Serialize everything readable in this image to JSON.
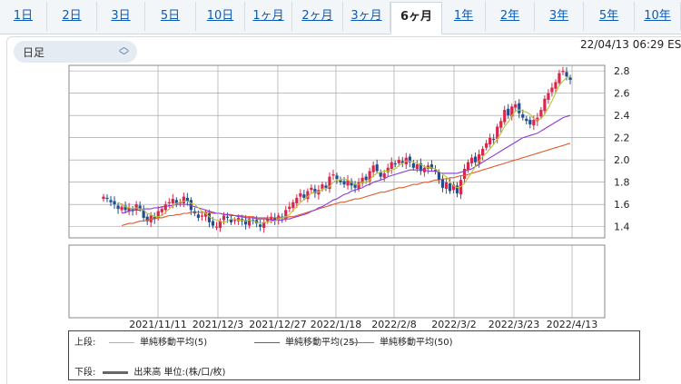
{
  "tabs": [
    {
      "label": "1日"
    },
    {
      "label": "2日"
    },
    {
      "label": "3日"
    },
    {
      "label": "5日"
    },
    {
      "label": "10日"
    },
    {
      "label": "1ヶ月"
    },
    {
      "label": "2ヶ月"
    },
    {
      "label": "3ヶ月"
    },
    {
      "label": "6ヶ月",
      "active": true
    },
    {
      "label": "1年"
    },
    {
      "label": "2年"
    },
    {
      "label": "3年"
    },
    {
      "label": "5年"
    },
    {
      "label": "10年"
    }
  ],
  "period_select": {
    "label": "日足"
  },
  "timestamp": "22/04/13 06:29 ES",
  "legend": {
    "upper_label": "上段:",
    "lower_label": "下段:",
    "ma5": "単純移動平均(5)",
    "ma25": "単純移動平均(25)",
    "ma50": "単純移動平均(50)",
    "volume": "出来高 単位:(株/口/枚)"
  },
  "colors": {
    "up": "#d9264a",
    "down": "#1f4f8f",
    "ma5": "#b8c43a",
    "ma25": "#8a3ad6",
    "ma50": "#e0592b",
    "grid": "#999999"
  },
  "chart_data": {
    "type": "candlestick",
    "x_ticks": [
      "2021/11/11",
      "2021/12/3",
      "2021/12/27",
      "2022/1/18",
      "2022/2/8",
      "2022/3/2",
      "2022/3/23",
      "2022/4/13"
    ],
    "y_ticks": [
      1.4,
      1.6,
      1.8,
      2.0,
      2.2,
      2.4,
      2.6,
      2.8
    ],
    "ylim": [
      1.3,
      2.85
    ],
    "close": [
      1.67,
      1.65,
      1.62,
      1.6,
      1.56,
      1.58,
      1.55,
      1.57,
      1.54,
      1.6,
      1.56,
      1.48,
      1.45,
      1.5,
      1.47,
      1.54,
      1.56,
      1.6,
      1.62,
      1.65,
      1.6,
      1.62,
      1.67,
      1.63,
      1.55,
      1.52,
      1.48,
      1.5,
      1.53,
      1.44,
      1.41,
      1.4,
      1.45,
      1.5,
      1.48,
      1.44,
      1.46,
      1.48,
      1.45,
      1.42,
      1.47,
      1.45,
      1.43,
      1.4,
      1.44,
      1.47,
      1.49,
      1.45,
      1.5,
      1.48,
      1.55,
      1.58,
      1.62,
      1.66,
      1.7,
      1.66,
      1.72,
      1.75,
      1.7,
      1.73,
      1.78,
      1.75,
      1.85,
      1.87,
      1.83,
      1.8,
      1.78,
      1.82,
      1.77,
      1.75,
      1.8,
      1.84,
      1.82,
      1.9,
      1.95,
      1.9,
      1.85,
      1.88,
      1.93,
      1.98,
      1.96,
      2.0,
      1.97,
      2.02,
      1.98,
      1.93,
      1.96,
      1.9,
      1.93,
      1.95,
      1.92,
      1.9,
      1.82,
      1.75,
      1.8,
      1.72,
      1.78,
      1.7,
      1.82,
      1.92,
      1.98,
      2.02,
      1.98,
      2.05,
      2.1,
      2.15,
      2.2,
      2.18,
      2.3,
      2.35,
      2.45,
      2.4,
      2.48,
      2.5,
      2.42,
      2.38,
      2.35,
      2.32,
      2.36,
      2.38,
      2.45,
      2.55,
      2.6,
      2.65,
      2.7,
      2.78,
      2.8,
      2.75,
      2.72
    ],
    "ma5": [
      null,
      null,
      null,
      null,
      1.62,
      1.6,
      1.58,
      1.57,
      1.56,
      1.57,
      1.56,
      1.55,
      1.52,
      1.51,
      1.49,
      1.49,
      1.5,
      1.53,
      1.56,
      1.59,
      1.61,
      1.62,
      1.63,
      1.63,
      1.61,
      1.6,
      1.57,
      1.54,
      1.52,
      1.49,
      1.47,
      1.46,
      1.45,
      1.44,
      1.45,
      1.47,
      1.47,
      1.46,
      1.46,
      1.45,
      1.46,
      1.45,
      1.44,
      1.43,
      1.44,
      1.44,
      1.45,
      1.45,
      1.47,
      1.48,
      1.49,
      1.51,
      1.55,
      1.58,
      1.62,
      1.64,
      1.67,
      1.7,
      1.71,
      1.71,
      1.74,
      1.74,
      1.76,
      1.8,
      1.82,
      1.82,
      1.83,
      1.82,
      1.8,
      1.78,
      1.78,
      1.8,
      1.8,
      1.82,
      1.86,
      1.88,
      1.89,
      1.9,
      1.9,
      1.91,
      1.92,
      1.95,
      1.97,
      1.99,
      1.99,
      1.98,
      1.97,
      1.96,
      1.94,
      1.93,
      1.93,
      1.92,
      1.9,
      1.87,
      1.85,
      1.8,
      1.77,
      1.75,
      1.76,
      1.79,
      1.84,
      1.89,
      1.94,
      1.99,
      2.03,
      2.06,
      2.1,
      2.14,
      2.19,
      2.24,
      2.3,
      2.34,
      2.4,
      2.44,
      2.45,
      2.44,
      2.43,
      2.41,
      2.37,
      2.36,
      2.37,
      2.41,
      2.47,
      2.53,
      2.6,
      2.67,
      2.71,
      2.74,
      2.75
    ],
    "ma25": [
      null,
      null,
      null,
      null,
      null,
      1.52,
      1.53,
      1.54,
      1.55,
      1.55,
      1.55,
      1.56,
      1.56,
      1.56,
      1.57,
      1.57,
      1.58,
      1.58,
      1.59,
      1.59,
      1.6,
      1.6,
      1.6,
      1.6,
      1.59,
      1.58,
      1.57,
      1.56,
      1.55,
      1.54,
      1.53,
      1.52,
      1.52,
      1.51,
      1.51,
      1.5,
      1.5,
      1.49,
      1.49,
      1.48,
      1.48,
      1.48,
      1.47,
      1.47,
      1.47,
      1.47,
      1.46,
      1.46,
      1.46,
      1.46,
      1.47,
      1.47,
      1.48,
      1.49,
      1.5,
      1.51,
      1.52,
      1.54,
      1.55,
      1.57,
      1.58,
      1.6,
      1.62,
      1.64,
      1.65,
      1.67,
      1.69,
      1.7,
      1.72,
      1.73,
      1.74,
      1.75,
      1.77,
      1.78,
      1.8,
      1.81,
      1.82,
      1.83,
      1.85,
      1.86,
      1.87,
      1.88,
      1.89,
      1.9,
      1.91,
      1.91,
      1.91,
      1.91,
      1.91,
      1.9,
      1.9,
      1.9,
      1.89,
      1.88,
      1.88,
      1.88,
      1.88,
      1.88,
      1.89,
      1.9,
      1.91,
      1.92,
      1.94,
      1.96,
      1.98,
      2.0,
      2.02,
      2.04,
      2.06,
      2.08,
      2.1,
      2.12,
      2.14,
      2.16,
      2.18,
      2.2,
      2.21,
      2.22,
      2.23,
      2.24,
      2.26,
      2.28,
      2.3,
      2.32,
      2.34,
      2.36,
      2.38,
      2.39,
      2.4
    ],
    "ma50": [
      null,
      null,
      null,
      null,
      null,
      1.41,
      1.42,
      1.43,
      1.43,
      1.44,
      1.45,
      1.45,
      1.46,
      1.47,
      1.47,
      1.48,
      1.48,
      1.49,
      1.5,
      1.5,
      1.51,
      1.51,
      1.52,
      1.52,
      1.53,
      1.53,
      1.53,
      1.53,
      1.53,
      1.53,
      1.52,
      1.52,
      1.52,
      1.51,
      1.51,
      1.51,
      1.5,
      1.5,
      1.5,
      1.49,
      1.49,
      1.49,
      1.48,
      1.48,
      1.48,
      1.48,
      1.48,
      1.48,
      1.48,
      1.48,
      1.48,
      1.49,
      1.49,
      1.5,
      1.51,
      1.52,
      1.53,
      1.54,
      1.55,
      1.56,
      1.57,
      1.58,
      1.59,
      1.6,
      1.61,
      1.62,
      1.62,
      1.63,
      1.64,
      1.65,
      1.65,
      1.66,
      1.67,
      1.68,
      1.69,
      1.7,
      1.71,
      1.71,
      1.72,
      1.73,
      1.74,
      1.75,
      1.75,
      1.76,
      1.77,
      1.78,
      1.78,
      1.79,
      1.8,
      1.8,
      1.81,
      1.82,
      1.82,
      1.83,
      1.83,
      1.84,
      1.84,
      1.85,
      1.86,
      1.86,
      1.87,
      1.88,
      1.89,
      1.9,
      1.91,
      1.92,
      1.93,
      1.94,
      1.95,
      1.96,
      1.97,
      1.98,
      1.99,
      2.0,
      2.01,
      2.02,
      2.03,
      2.04,
      2.05,
      2.06,
      2.07,
      2.08,
      2.09,
      2.1,
      2.11,
      2.12,
      2.13,
      2.14,
      2.15
    ]
  }
}
